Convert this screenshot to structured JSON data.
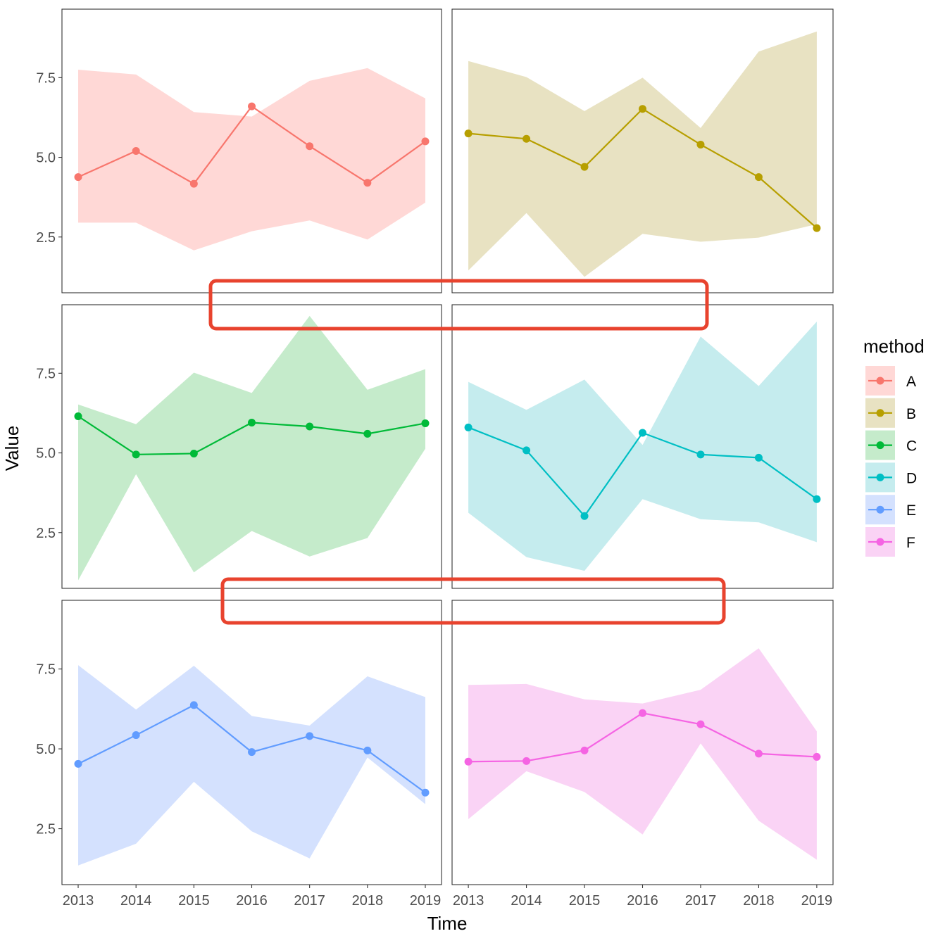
{
  "chart_data": {
    "type": "line",
    "subtype": "faceted line with ribbon",
    "xlabel": "Time",
    "ylabel": "Value",
    "x": [
      2013,
      2014,
      2015,
      2016,
      2017,
      2018,
      2019
    ],
    "x_tick_labels": [
      "2013",
      "2014",
      "2015",
      "2016",
      "2017",
      "2018",
      "2019"
    ],
    "y_ticks": [
      2.5,
      5.0,
      7.5
    ],
    "y_tick_labels": [
      "2.5",
      "5.0",
      "7.5"
    ],
    "ylim": [
      0.75,
      9.65
    ],
    "xlim": [
      2012.72,
      2019.28
    ],
    "grid": false,
    "facet_layout": "3 rows x 2 columns",
    "legend": {
      "title": "method",
      "position": "right"
    },
    "series": [
      {
        "name": "A",
        "color": "#F8766D",
        "fill": "#FFD8D6",
        "values": [
          4.38,
          5.2,
          4.17,
          6.6,
          5.35,
          4.2,
          5.5
        ],
        "lower": [
          2.95,
          2.95,
          2.08,
          2.68,
          3.02,
          2.42,
          3.58
        ],
        "upper": [
          7.75,
          7.6,
          6.42,
          6.28,
          7.4,
          7.8,
          6.85
        ]
      },
      {
        "name": "B",
        "color": "#B79F00",
        "fill": "#E8E2C2",
        "values": [
          5.75,
          5.58,
          4.7,
          6.52,
          5.4,
          4.38,
          2.78
        ],
        "lower": [
          1.45,
          3.25,
          1.25,
          2.6,
          2.35,
          2.48,
          2.9
        ],
        "upper": [
          8.02,
          7.52,
          6.45,
          7.5,
          5.92,
          8.32,
          8.95
        ]
      },
      {
        "name": "C",
        "color": "#00BA38",
        "fill": "#C5EBCB",
        "values": [
          6.15,
          4.95,
          4.98,
          5.95,
          5.83,
          5.6,
          5.93
        ],
        "lower": [
          1.0,
          4.33,
          1.25,
          2.55,
          1.75,
          2.33,
          5.13
        ],
        "upper": [
          6.52,
          5.9,
          7.52,
          6.88,
          9.3,
          6.98,
          7.63
        ]
      },
      {
        "name": "D",
        "color": "#00BFC4",
        "fill": "#C5ECEE",
        "values": [
          5.8,
          5.08,
          3.02,
          5.63,
          4.95,
          4.85,
          3.55
        ],
        "lower": [
          3.12,
          1.73,
          1.3,
          3.55,
          2.92,
          2.82,
          2.2
        ],
        "upper": [
          7.23,
          6.35,
          7.3,
          5.25,
          8.65,
          7.1,
          9.12
        ]
      },
      {
        "name": "E",
        "color": "#619CFF",
        "fill": "#D4E1FE",
        "values": [
          4.53,
          5.43,
          6.37,
          4.9,
          5.4,
          4.95,
          3.63
        ],
        "lower": [
          1.35,
          2.03,
          3.97,
          2.42,
          1.57,
          4.73,
          3.27
        ],
        "upper": [
          7.62,
          6.23,
          7.6,
          6.03,
          5.73,
          7.27,
          6.62
        ]
      },
      {
        "name": "F",
        "color": "#F564E3",
        "fill": "#FAD3F5",
        "values": [
          4.6,
          4.62,
          4.95,
          6.12,
          5.77,
          4.85,
          4.75
        ],
        "lower": [
          2.8,
          4.3,
          3.65,
          2.32,
          5.17,
          2.75,
          1.53
        ],
        "upper": [
          7.0,
          7.03,
          6.55,
          6.42,
          6.85,
          8.15,
          5.55
        ]
      }
    ],
    "annotations": [
      {
        "type": "rounded-rectangle-outline",
        "color": "#E8432E",
        "location": "gap between row 1 and row 2 facets"
      },
      {
        "type": "rounded-rectangle-outline",
        "color": "#E8432E",
        "location": "gap between row 2 and row 3 facets"
      }
    ]
  }
}
